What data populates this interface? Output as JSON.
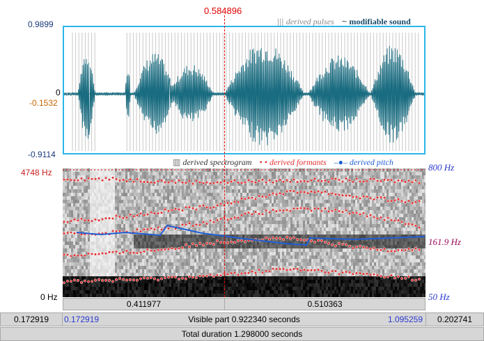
{
  "cursor": {
    "time": "0.584896"
  },
  "waveform": {
    "max": "0.9899",
    "zero": "0",
    "cursor_value": "-0.1532",
    "min": "-0.9114",
    "legend_pulses": "derived pulses",
    "legend_sound": "modifiable sound"
  },
  "spectrogram": {
    "max_freq": "4748 Hz",
    "min_freq": "0 Hz",
    "legend_spectrogram": "derived spectrogram",
    "legend_formants": "derived formants",
    "legend_pitch": "derived pitch",
    "pitch_top": "800 Hz",
    "pitch_value": "161.9 Hz",
    "pitch_bottom": "50 Hz"
  },
  "segments": {
    "left": "0.411977",
    "right": "0.510363"
  },
  "visible": {
    "before": "0.172919",
    "start": "0.172919",
    "label": "Visible part 0.922340 seconds",
    "end": "1.095259",
    "after": "0.202741"
  },
  "total": {
    "label": "Total duration 1.298000 seconds"
  },
  "colors": {
    "wave": "#1a6c80",
    "frame": "#29b6e8",
    "cursor": "#e00000",
    "formant": "#e03030",
    "pitch": "#1f5fd6",
    "axis_red": "#c82020",
    "axis_blue": "#2a3ad0",
    "value_orange": "#c86400",
    "pitch_maroon": "#9a0a5a"
  }
}
